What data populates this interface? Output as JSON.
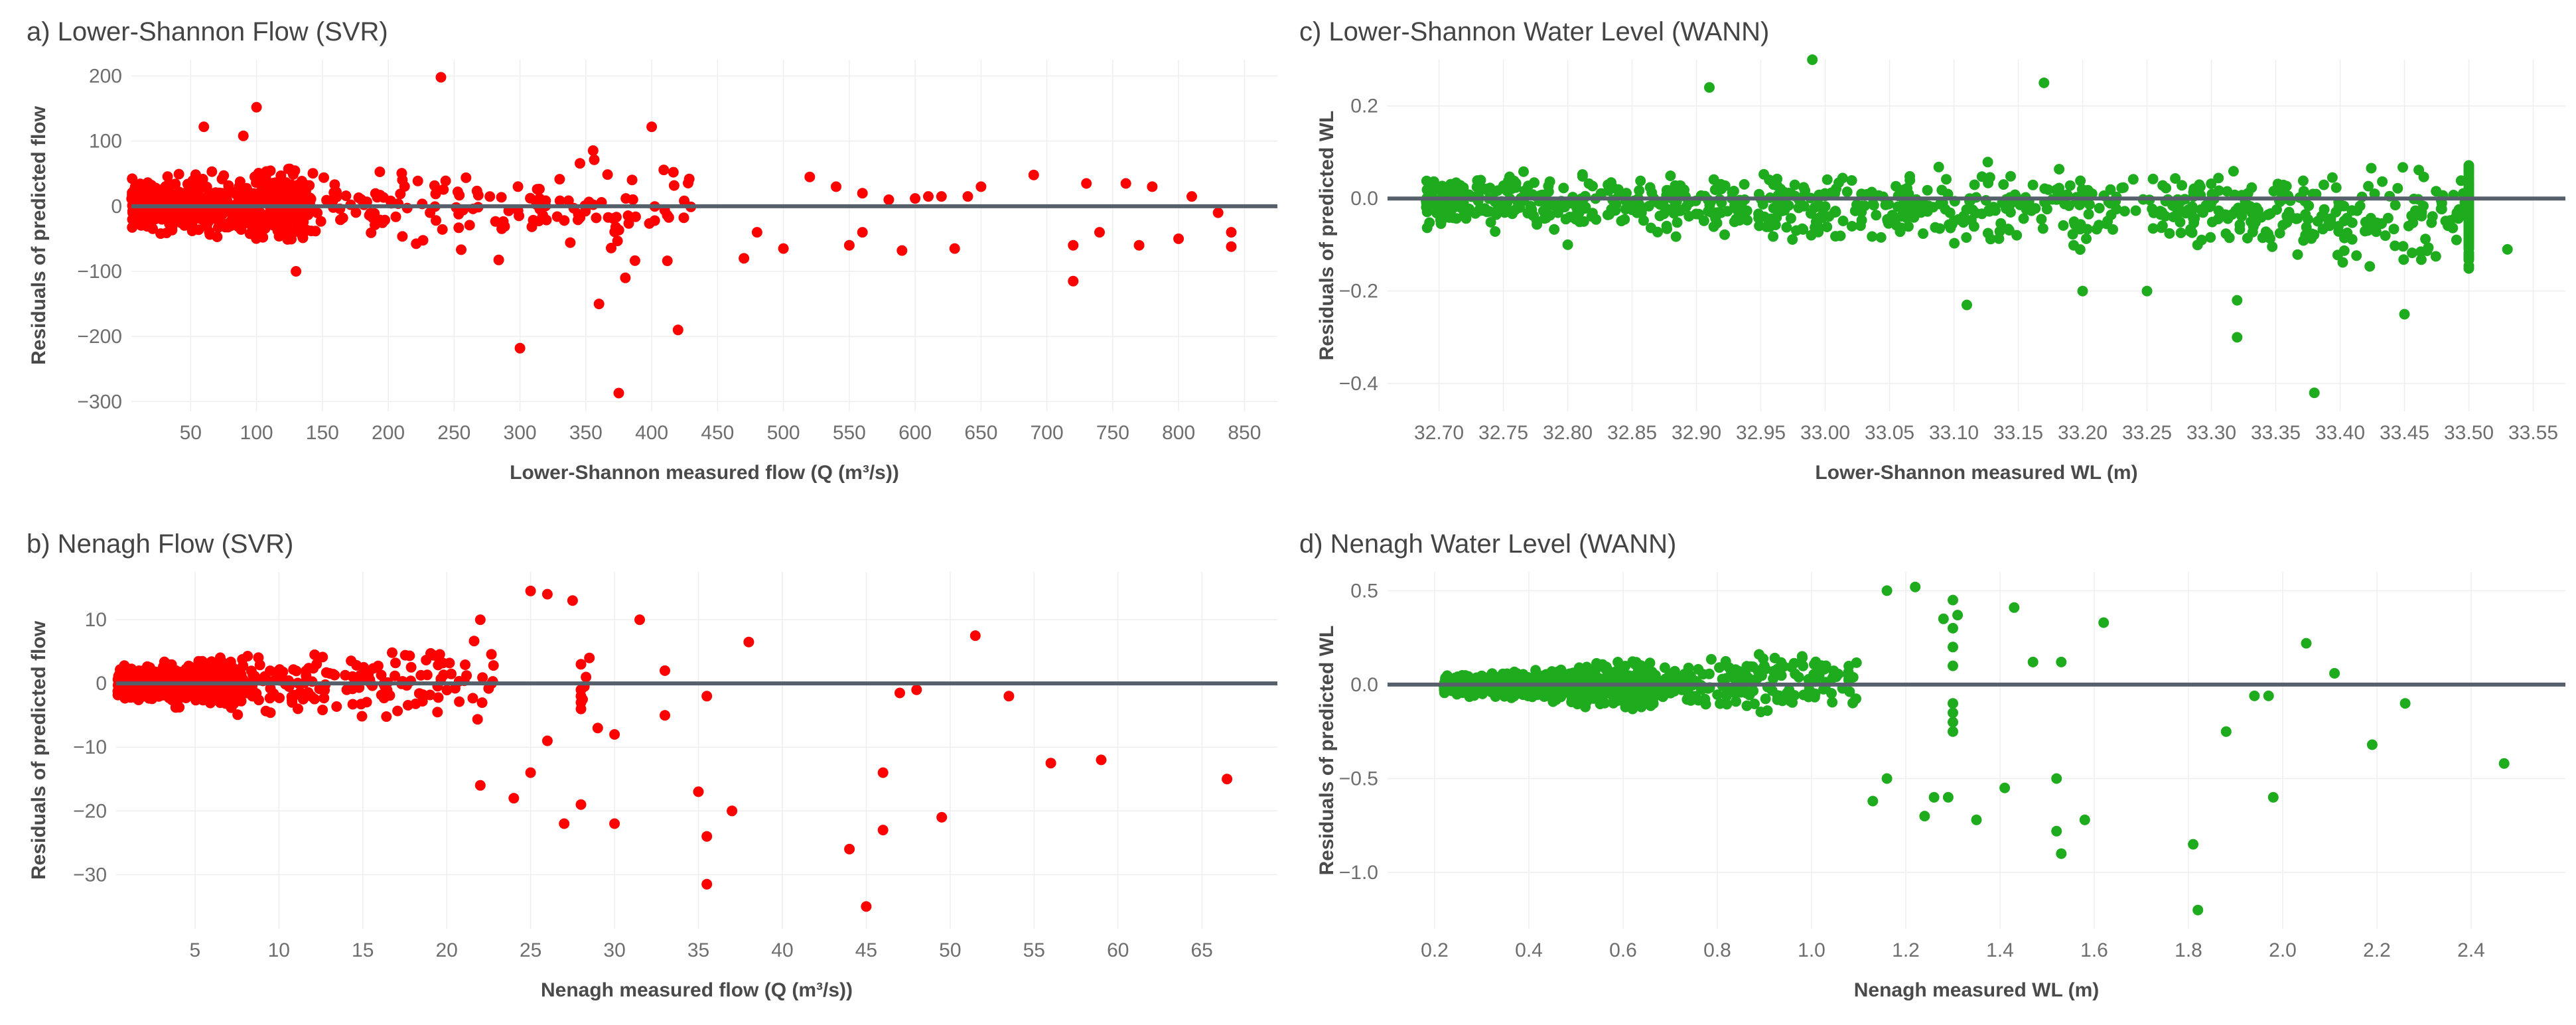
{
  "colors": {
    "red": "#ff0000",
    "green": "#1eab1e",
    "zero_line": "#56606b",
    "grid": "#eeeeee"
  },
  "chart_data": [
    {
      "id": "a",
      "type": "scatter",
      "title": "a) Lower-Shannon Flow (SVR)",
      "xlabel": "Lower-Shannon measured flow (Q (m³/s))",
      "ylabel": "Residuals of predicted flow",
      "color_key": "red",
      "xlim": [
        5,
        875
      ],
      "ylim": [
        -315,
        225
      ],
      "xticks": [
        50,
        100,
        150,
        200,
        250,
        300,
        350,
        400,
        450,
        500,
        550,
        600,
        650,
        700,
        750,
        800,
        850
      ],
      "xtick_labels": [
        "50",
        "100",
        "150",
        "200",
        "250",
        "300",
        "350",
        "400",
        "450",
        "500",
        "550",
        "600",
        "650",
        "700",
        "750",
        "800",
        "850"
      ],
      "yticks": [
        -300,
        -200,
        -100,
        0,
        100,
        200
      ],
      "ytick_labels": [
        "−300",
        "−200",
        "−100",
        "0",
        "100",
        "200"
      ],
      "outliers": [
        [
          240,
          198
        ],
        [
          60,
          122
        ],
        [
          100,
          152
        ],
        [
          400,
          122
        ],
        [
          90,
          108
        ],
        [
          300,
          -218
        ],
        [
          375,
          -287
        ],
        [
          420,
          -190
        ],
        [
          360,
          -150
        ],
        [
          380,
          -110
        ],
        [
          130,
          -100
        ],
        [
          720,
          -115
        ],
        [
          690,
          48
        ],
        [
          730,
          35
        ],
        [
          760,
          35
        ],
        [
          780,
          30
        ],
        [
          810,
          15
        ],
        [
          830,
          -10
        ],
        [
          840,
          -40
        ],
        [
          840,
          -62
        ],
        [
          720,
          -60
        ],
        [
          740,
          -40
        ],
        [
          770,
          -60
        ],
        [
          800,
          -50
        ],
        [
          650,
          30
        ],
        [
          620,
          15
        ],
        [
          600,
          12
        ],
        [
          580,
          10
        ],
        [
          560,
          20
        ],
        [
          540,
          30
        ],
        [
          520,
          45
        ],
        [
          590,
          -68
        ],
        [
          630,
          -65
        ],
        [
          550,
          -60
        ],
        [
          500,
          -65
        ],
        [
          470,
          -80
        ],
        [
          480,
          -40
        ],
        [
          560,
          -40
        ],
        [
          610,
          15
        ],
        [
          640,
          15
        ]
      ],
      "cluster": {
        "n": 700,
        "x_min": 5,
        "x_max": 430,
        "x_mode": 90,
        "spread": 25,
        "widen": 0.12
      }
    },
    {
      "id": "b",
      "type": "scatter",
      "title": "b) Nenagh Flow (SVR)",
      "xlabel": "Nenagh measured flow (Q (m³/s))",
      "ylabel": "Residuals of predicted flow",
      "color_key": "red",
      "xlim": [
        0.3,
        69.5
      ],
      "ylim": [
        -38.5,
        17.5
      ],
      "xticks": [
        5,
        10,
        15,
        20,
        25,
        30,
        35,
        40,
        45,
        50,
        55,
        60,
        65
      ],
      "xtick_labels": [
        "5",
        "10",
        "15",
        "20",
        "25",
        "30",
        "35",
        "40",
        "45",
        "50",
        "55",
        "60",
        "65"
      ],
      "yticks": [
        -30,
        -20,
        -10,
        0,
        10
      ],
      "ytick_labels": [
        "−30",
        "−20",
        "−10",
        "0",
        "10"
      ],
      "outliers": [
        [
          25,
          14.5
        ],
        [
          26,
          14
        ],
        [
          27.5,
          13
        ],
        [
          31.5,
          10
        ],
        [
          22,
          10
        ],
        [
          51.5,
          7.5
        ],
        [
          38,
          6.5
        ],
        [
          45,
          -35
        ],
        [
          35.5,
          -31.5
        ],
        [
          44,
          -26
        ],
        [
          35.5,
          -24
        ],
        [
          37,
          -20
        ],
        [
          35,
          -17
        ],
        [
          49.5,
          -21
        ],
        [
          46,
          -23
        ],
        [
          46,
          -14
        ],
        [
          56,
          -12.5
        ],
        [
          59,
          -12
        ],
        [
          66.5,
          -15
        ],
        [
          53.5,
          -2
        ],
        [
          48,
          -1
        ],
        [
          47,
          -1.5
        ],
        [
          30,
          -22
        ],
        [
          27,
          -22
        ],
        [
          28,
          -19
        ],
        [
          24,
          -18
        ],
        [
          22,
          -16
        ],
        [
          25,
          -14
        ],
        [
          26,
          -9
        ],
        [
          29,
          -7
        ],
        [
          30,
          -8
        ],
        [
          33,
          -5
        ],
        [
          33,
          2
        ],
        [
          28,
          3
        ],
        [
          28.5,
          4
        ],
        [
          35.5,
          -2
        ],
        [
          28,
          -1
        ],
        [
          28,
          -2
        ],
        [
          28,
          -3
        ],
        [
          28,
          -4
        ],
        [
          28.2,
          -0.5
        ],
        [
          28.3,
          1
        ],
        [
          28.1,
          -2.5
        ]
      ],
      "cluster": {
        "n": 650,
        "x_min": 0.4,
        "x_max": 23,
        "x_mode": 5,
        "spread": 1.5,
        "widen": 0.22
      }
    },
    {
      "id": "c",
      "type": "scatter",
      "title": "c) Lower-Shannon Water Level (WANN)",
      "xlabel": "Lower-Shannon measured WL (m)",
      "ylabel": "Residuals of predicted WL",
      "color_key": "green",
      "xlim": [
        32.66,
        33.575
      ],
      "ylim": [
        -0.46,
        0.3
      ],
      "xticks": [
        32.7,
        32.75,
        32.8,
        32.85,
        32.9,
        32.95,
        33.0,
        33.05,
        33.1,
        33.15,
        33.2,
        33.25,
        33.3,
        33.35,
        33.4,
        33.45,
        33.5,
        33.55
      ],
      "xtick_labels": [
        "32.70",
        "32.75",
        "32.80",
        "32.85",
        "32.90",
        "32.95",
        "33.00",
        "33.05",
        "33.10",
        "33.15",
        "33.20",
        "33.25",
        "33.30",
        "33.35",
        "33.40",
        "33.45",
        "33.50",
        "33.55"
      ],
      "yticks": [
        -0.4,
        -0.2,
        0.0,
        0.2
      ],
      "ytick_labels": [
        "−0.4",
        "−0.2",
        "0.0",
        "0.2"
      ],
      "outliers": [
        [
          32.99,
          0.3
        ],
        [
          33.17,
          0.25
        ],
        [
          32.91,
          0.24
        ],
        [
          33.38,
          -0.42
        ],
        [
          33.32,
          -0.3
        ],
        [
          33.45,
          -0.25
        ],
        [
          33.11,
          -0.23
        ],
        [
          33.53,
          -0.11
        ],
        [
          32.8,
          -0.1
        ],
        [
          33.5,
          -0.08
        ],
        [
          33.49,
          -0.04
        ],
        [
          33.2,
          -0.2
        ],
        [
          33.25,
          -0.2
        ],
        [
          33.32,
          -0.22
        ]
      ],
      "cluster": {
        "n": 950,
        "x_min": 32.69,
        "x_max": 33.5,
        "x_mode": 33.3,
        "spread": 0.035,
        "shift": -0.04,
        "widen": 0.1
      }
    },
    {
      "id": "d",
      "type": "scatter",
      "title": "d) Nenagh Water Level (WANN)",
      "xlabel": "Nenagh measured WL (m)",
      "ylabel": "Residuals of predicted WL",
      "color_key": "green",
      "xlim": [
        0.1,
        2.6
      ],
      "ylim": [
        -1.3,
        0.6
      ],
      "xticks": [
        0.2,
        0.4,
        0.6,
        0.8,
        1.0,
        1.2,
        1.4,
        1.6,
        1.8,
        2.0,
        2.2,
        2.4
      ],
      "xtick_labels": [
        "0.2",
        "0.4",
        "0.6",
        "0.8",
        "1.0",
        "1.2",
        "1.4",
        "1.6",
        "1.8",
        "2.0",
        "2.2",
        "2.4"
      ],
      "yticks": [
        -1.0,
        -0.5,
        0.0,
        0.5
      ],
      "ytick_labels": [
        "−1.0",
        "−0.5",
        "0.0",
        "0.5"
      ],
      "outliers": [
        [
          1.82,
          -1.2
        ],
        [
          1.81,
          -0.85
        ],
        [
          1.53,
          -0.9
        ],
        [
          1.52,
          -0.78
        ],
        [
          1.26,
          -0.6
        ],
        [
          1.29,
          -0.6
        ],
        [
          1.41,
          -0.55
        ],
        [
          1.52,
          -0.5
        ],
        [
          1.58,
          -0.72
        ],
        [
          1.35,
          -0.72
        ],
        [
          1.24,
          -0.7
        ],
        [
          1.16,
          -0.5
        ],
        [
          1.13,
          -0.62
        ],
        [
          1.98,
          -0.6
        ],
        [
          2.47,
          -0.42
        ],
        [
          2.19,
          -0.32
        ],
        [
          1.88,
          -0.25
        ],
        [
          2.26,
          -0.1
        ],
        [
          1.97,
          -0.06
        ],
        [
          1.94,
          -0.06
        ],
        [
          2.05,
          0.22
        ],
        [
          2.11,
          0.06
        ],
        [
          1.62,
          0.33
        ],
        [
          1.43,
          0.41
        ],
        [
          1.22,
          0.52
        ],
        [
          1.16,
          0.5
        ],
        [
          1.3,
          0.45
        ],
        [
          1.31,
          0.37
        ],
        [
          1.3,
          0.3
        ],
        [
          1.3,
          0.2
        ],
        [
          1.3,
          0.1
        ],
        [
          1.3,
          -0.1
        ],
        [
          1.3,
          -0.15
        ],
        [
          1.3,
          -0.2
        ],
        [
          1.3,
          -0.25
        ],
        [
          1.47,
          0.12
        ],
        [
          1.53,
          0.12
        ],
        [
          1.28,
          0.35
        ],
        [
          0.98,
          0.15
        ]
      ],
      "cluster": {
        "n": 1100,
        "x_min": 0.22,
        "x_max": 1.1,
        "x_mode": 0.5,
        "spread": 0.03,
        "widen": 0.3
      }
    }
  ]
}
